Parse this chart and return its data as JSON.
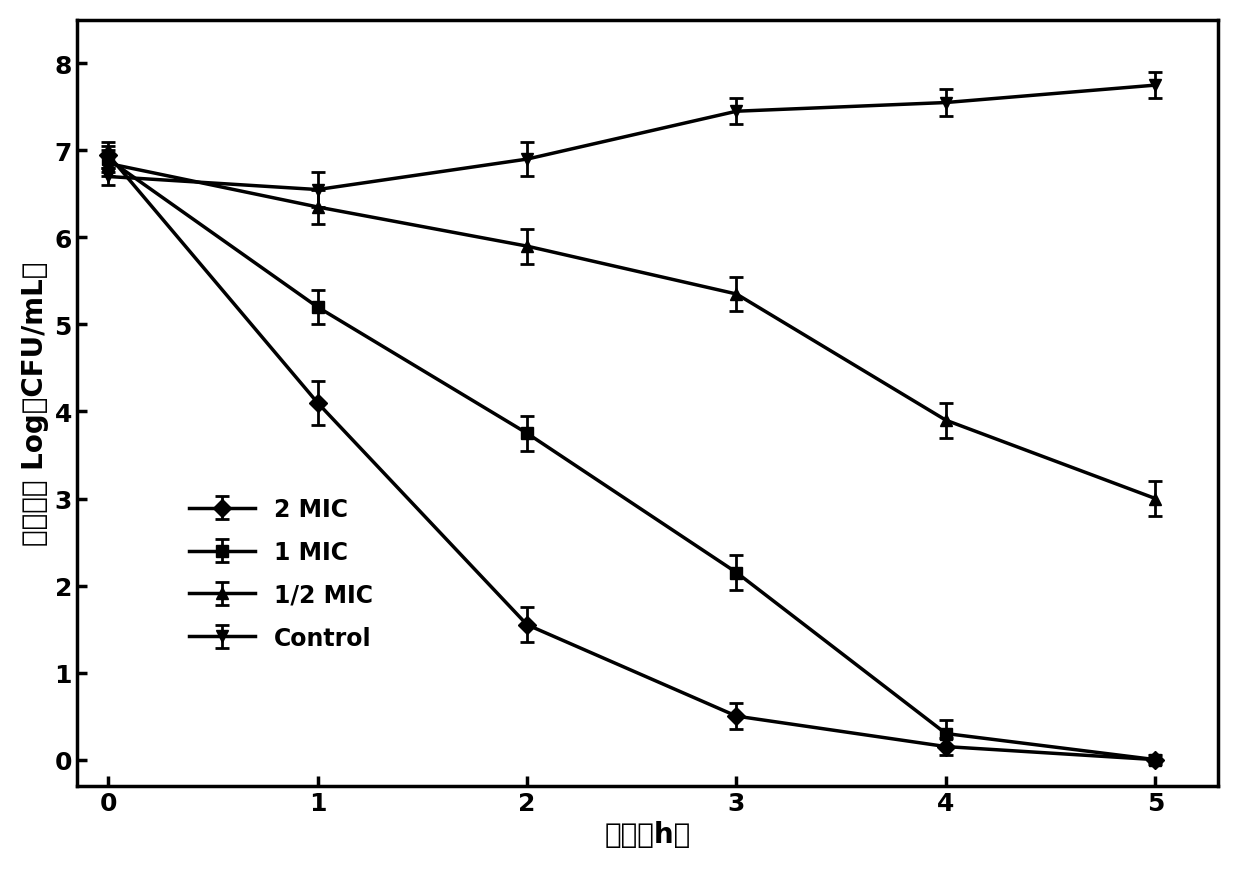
{
  "x": [
    0,
    1,
    2,
    3,
    4,
    5
  ],
  "series": {
    "2 MIC": {
      "y": [
        6.95,
        4.1,
        1.55,
        0.5,
        0.15,
        0.0
      ],
      "yerr": [
        0.15,
        0.25,
        0.2,
        0.15,
        0.1,
        0.0
      ],
      "marker": "D",
      "markersize": 9
    },
    "1 MIC": {
      "y": [
        6.9,
        5.2,
        3.75,
        2.15,
        0.3,
        0.0
      ],
      "yerr": [
        0.15,
        0.2,
        0.2,
        0.2,
        0.15,
        0.05
      ],
      "marker": "s",
      "markersize": 9
    },
    "1/2 MIC": {
      "y": [
        6.85,
        6.35,
        5.9,
        5.35,
        3.9,
        3.0
      ],
      "yerr": [
        0.15,
        0.2,
        0.2,
        0.2,
        0.2,
        0.2
      ],
      "marker": "^",
      "markersize": 9
    },
    "Control": {
      "y": [
        6.7,
        6.55,
        6.9,
        7.45,
        7.55,
        7.75
      ],
      "yerr": [
        0.1,
        0.2,
        0.2,
        0.15,
        0.15,
        0.15
      ],
      "marker": "v",
      "markersize": 9
    }
  },
  "xlabel": "时间（h）",
  "ylabel": "细菌浓度 Log（CFU/mL）",
  "xlim": [
    -0.15,
    5.3
  ],
  "ylim": [
    -0.3,
    8.5
  ],
  "yticks": [
    0,
    1,
    2,
    3,
    4,
    5,
    6,
    7,
    8
  ],
  "xticks": [
    0,
    1,
    2,
    3,
    4,
    5
  ],
  "color": "#000000",
  "linewidth": 2.5,
  "capsize": 5,
  "elinewidth": 2.0,
  "legend_order": [
    "2 MIC",
    "1 MIC",
    "1/2 MIC",
    "Control"
  ],
  "legend_fontsize": 17,
  "axis_fontsize": 20,
  "tick_fontsize": 18,
  "background_color": "#ffffff"
}
